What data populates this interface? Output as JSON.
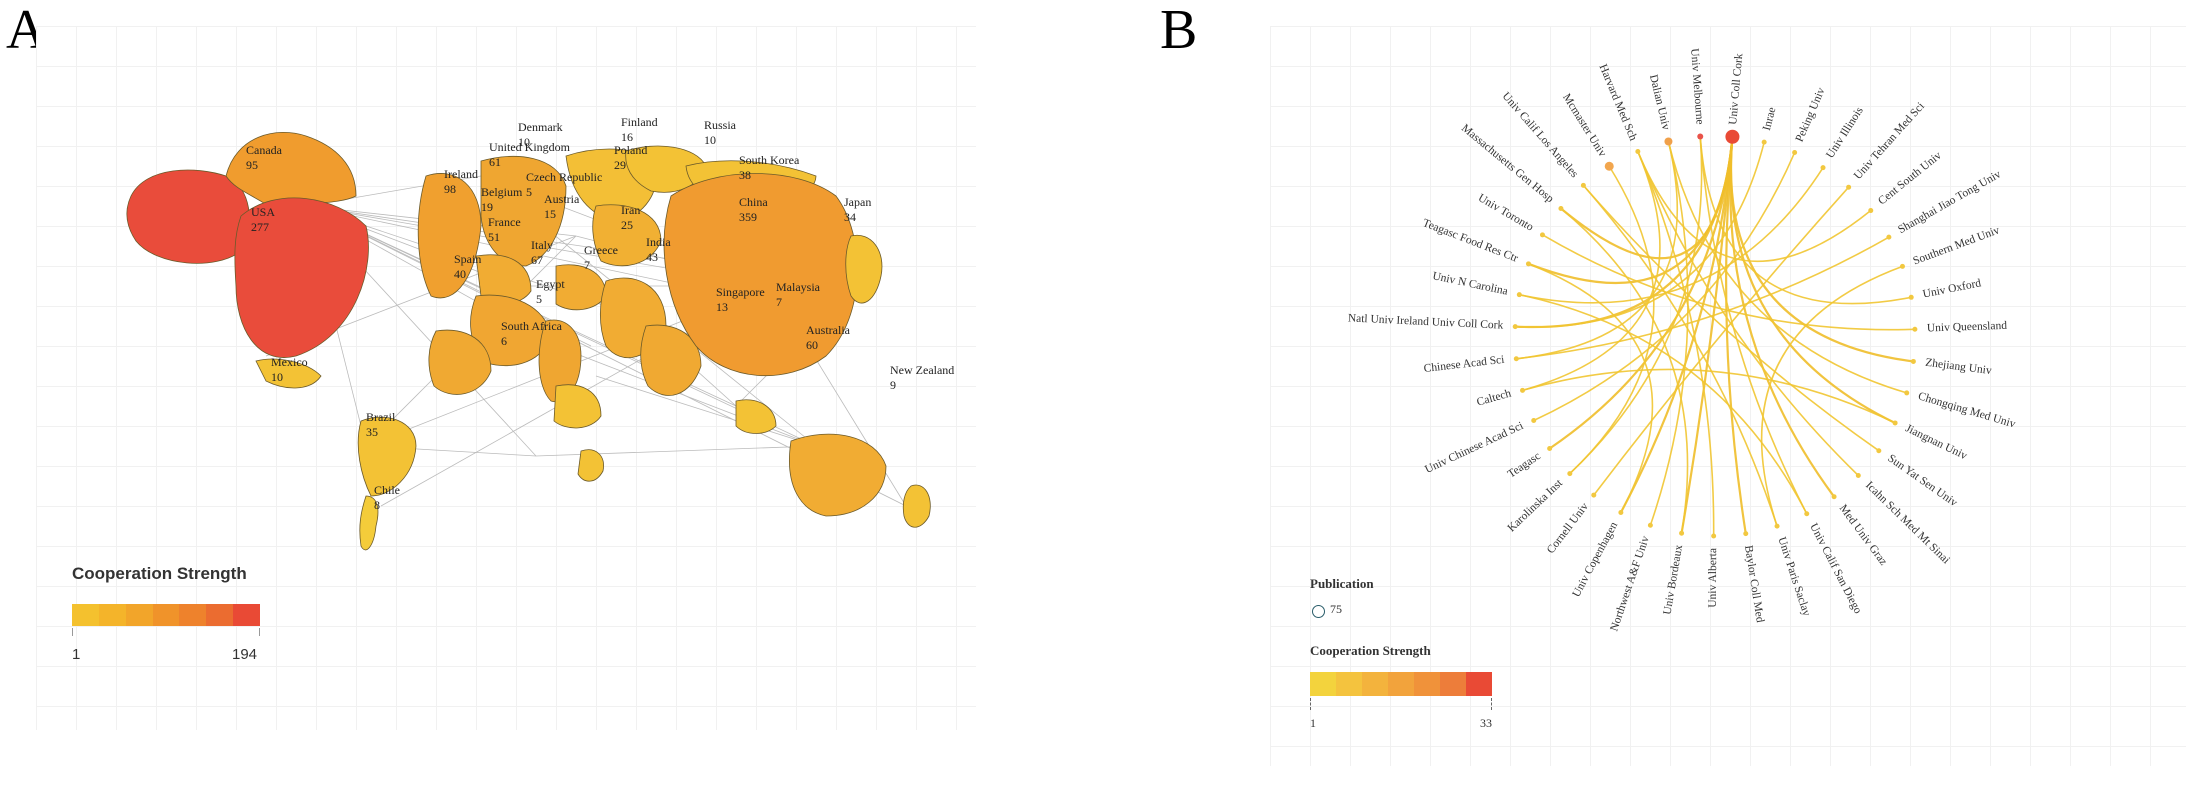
{
  "panels": {
    "a": {
      "letter": "A"
    },
    "b": {
      "letter": "B"
    }
  },
  "map_legend": {
    "title": "Cooperation Strength",
    "min": "1",
    "max": "194",
    "colors": [
      "#f4c12e",
      "#f4b42a",
      "#f2a52a",
      "#f0932a",
      "#ee822c",
      "#eb6c30",
      "#e94a35"
    ]
  },
  "countries": [
    {
      "name": "USA",
      "value": "277",
      "color": "#e94c3b"
    },
    {
      "name": "Canada",
      "value": "95",
      "color": "#f09c2e"
    },
    {
      "name": "Mexico",
      "value": "10",
      "color": "#f3c235"
    },
    {
      "name": "Brazil",
      "value": "35",
      "color": "#f3c235"
    },
    {
      "name": "Chile",
      "value": "8",
      "color": "#f4cc3a"
    },
    {
      "name": "Ireland",
      "value": "98",
      "color": "#f0a02f"
    },
    {
      "name": "United Kingdom",
      "value": "61",
      "color": "#efa631"
    },
    {
      "name": "Denmark",
      "value": "10",
      "color": "#f3bf36"
    },
    {
      "name": "Finland",
      "value": "16",
      "color": "#f3c235"
    },
    {
      "name": "Russia",
      "value": "10",
      "color": "#f3c235"
    },
    {
      "name": "Poland",
      "value": "29",
      "color": "#f1b033"
    },
    {
      "name": "Czech Republic",
      "value": "5",
      "color": "#f3bf36"
    },
    {
      "name": "Belgium",
      "value": "19",
      "color": "#f1ac33"
    },
    {
      "name": "Austria",
      "value": "15",
      "color": "#f1ac33"
    },
    {
      "name": "France",
      "value": "51",
      "color": "#f0a632"
    },
    {
      "name": "Italy",
      "value": "67",
      "color": "#efa631"
    },
    {
      "name": "Spain",
      "value": "40",
      "color": "#f0a932"
    },
    {
      "name": "Greece",
      "value": "7",
      "color": "#f3bf36"
    },
    {
      "name": "Iran",
      "value": "25",
      "color": "#f1ac33"
    },
    {
      "name": "India",
      "value": "43",
      "color": "#f0a932"
    },
    {
      "name": "Egypt",
      "value": "5",
      "color": "#f3c235"
    },
    {
      "name": "China",
      "value": "359",
      "color": "#f09b30"
    },
    {
      "name": "South Korea",
      "value": "38",
      "color": "#f0a932"
    },
    {
      "name": "Japan",
      "value": "34",
      "color": "#f3c235"
    },
    {
      "name": "Singapore",
      "value": "13",
      "color": "#f3c235"
    },
    {
      "name": "Malaysia",
      "value": "7",
      "color": "#f3c235"
    },
    {
      "name": "South Africa",
      "value": "6",
      "color": "#f3c235"
    },
    {
      "name": "Australia",
      "value": "60",
      "color": "#f1ac33"
    },
    {
      "name": "New Zealand",
      "value": "9",
      "color": "#f3c235"
    }
  ],
  "chord_legend": {
    "publication_title": "Publication",
    "publication_value": "75",
    "strength_title": "Cooperation Strength",
    "min": "1",
    "max": "33",
    "colors": [
      "#f3d33d",
      "#f4c33e",
      "#f3b33d",
      "#f2a33c",
      "#f0923a",
      "#ed7d3a",
      "#e94a35"
    ]
  },
  "institutions": [
    "Univ Coll Cork",
    "Inrae",
    "Peking Univ",
    "Univ Illinois",
    "Univ Tehran Med Sci",
    "Cent South Univ",
    "Shanghai Jiao Tong Univ",
    "Southern Med Univ",
    "Univ Oxford",
    "Univ Queensland",
    "Zhejiang Univ",
    "Chongqing Med Univ",
    "Jiangnan Univ",
    "Sun Yat Sen Univ",
    "Icahn Sch Med Mt Sinai",
    "Med Univ Graz",
    "Univ Calif San Diego",
    "Univ Paris Saclay",
    "Baylor Coll Med",
    "Univ Alberta",
    "Univ Bordeaux",
    "Northwest A&F Univ",
    "Univ Copenhagen",
    "Cornell Univ",
    "Karolinska Inst",
    "Teagasc",
    "Univ Chinese Acad Sci",
    "Caltech",
    "Chinese Acad Sci",
    "Natl Univ Ireland Univ Coll Cork",
    "Univ N Carolina",
    "Teagasc Food Res Ctr",
    "Univ Toronto",
    "Massachusetts Gen Hosp",
    "Univ Calif Los Angeles",
    "Mcmaster Univ",
    "Harvard Med Sch",
    "Dalian Univ",
    "Univ Melbourne"
  ]
}
